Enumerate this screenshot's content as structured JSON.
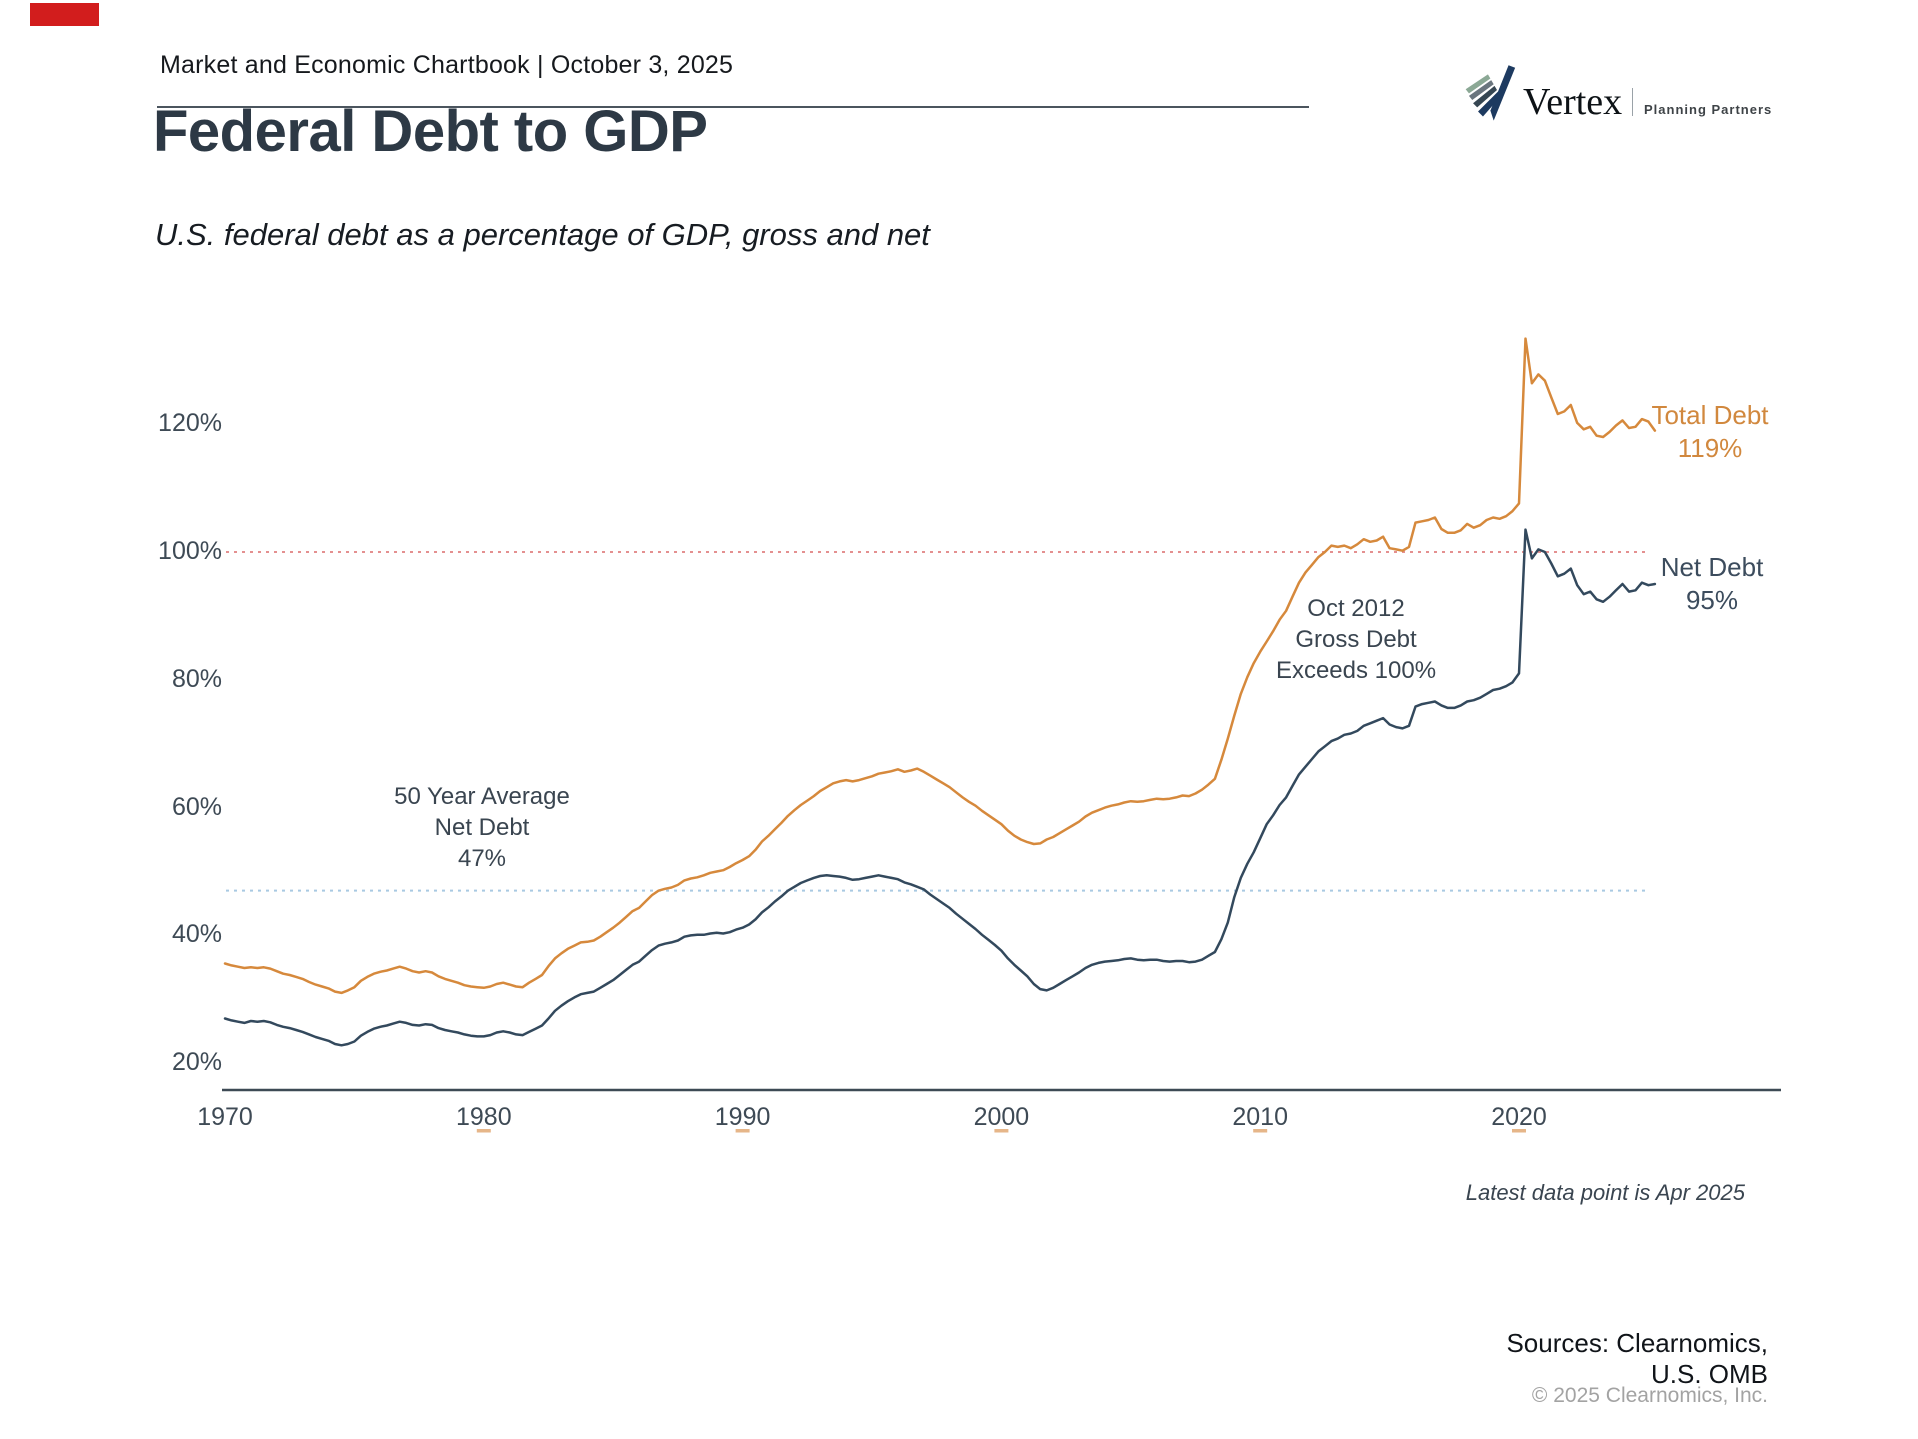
{
  "header": {
    "text": "Market and Economic Chartbook | October 3, 2025"
  },
  "logo": {
    "name": "Vertex",
    "tagline": "Planning Partners"
  },
  "title": "Federal Debt to GDP",
  "subtitle": "U.S. federal debt as a percentage of GDP, gross and net",
  "annotations": {
    "avg": {
      "l1": "50 Year Average",
      "l2": "Net Debt",
      "l3": "47%"
    },
    "oct2012": {
      "l1": "Oct 2012",
      "l2": "Gross Debt",
      "l3": "Exceeds 100%"
    },
    "latest": "Latest data point is Apr 2025"
  },
  "footer": {
    "sources": [
      "Sources: Clearnomics,",
      "U.S. OMB"
    ],
    "copyright": "© 2025 Clearnomics, Inc."
  },
  "colors": {
    "total_line": "#d6893c",
    "net_line": "#33495d",
    "ref_100": "#e49090",
    "ref_avg": "#a9c9e2",
    "axis": "#3d4a55",
    "tick_accent": "#dd9d62",
    "title": "#2d3945",
    "red_mark": "#d21d1d"
  },
  "chart_data": {
    "type": "line",
    "title": "Federal Debt to GDP",
    "subtitle": "U.S. federal debt as a percentage of GDP, gross and net",
    "unit": "percent of GDP",
    "x_range": [
      1970,
      2025.25
    ],
    "ylim": [
      14,
      140
    ],
    "grid": false,
    "legend_position": "end-of-line labels",
    "y_ticks": [
      {
        "value": 120,
        "label": "120%"
      },
      {
        "value": 100,
        "label": "100%"
      },
      {
        "value": 80,
        "label": "80%"
      },
      {
        "value": 60,
        "label": "60%"
      },
      {
        "value": 40,
        "label": "40%"
      },
      {
        "value": 20,
        "label": "20%"
      }
    ],
    "x_ticks": [
      {
        "value": 1970,
        "label": "1970"
      },
      {
        "value": 1980,
        "label": "1980"
      },
      {
        "value": 1990,
        "label": "1990"
      },
      {
        "value": 2000,
        "label": "2000"
      },
      {
        "value": 2010,
        "label": "2010"
      },
      {
        "value": 2020,
        "label": "2020"
      }
    ],
    "reference_lines": [
      {
        "value": 100,
        "style": "dotted",
        "color": "#e49090",
        "label": "100% level"
      },
      {
        "value": 47,
        "style": "dotted",
        "color": "#a9c9e2",
        "label": "50 Year Average Net Debt 47%"
      }
    ],
    "series": [
      {
        "name": "Total Debt",
        "latest_label": "119%",
        "color": "#d6893c",
        "x_start": 1970,
        "x_step": 0.25,
        "values": [
          35.6,
          35.3,
          35.1,
          34.9,
          35.0,
          34.9,
          35.0,
          34.8,
          34.4,
          34.0,
          33.8,
          33.5,
          33.2,
          32.7,
          32.3,
          32.0,
          31.7,
          31.2,
          31.0,
          31.4,
          31.9,
          32.9,
          33.5,
          34.0,
          34.3,
          34.5,
          34.8,
          35.1,
          34.8,
          34.4,
          34.2,
          34.4,
          34.2,
          33.6,
          33.2,
          32.9,
          32.6,
          32.2,
          32.0,
          31.9,
          31.8,
          32.0,
          32.4,
          32.6,
          32.3,
          32.0,
          31.9,
          32.6,
          33.2,
          33.8,
          35.2,
          36.4,
          37.2,
          37.9,
          38.4,
          38.9,
          39.0,
          39.2,
          39.8,
          40.5,
          41.2,
          42.0,
          42.9,
          43.8,
          44.3,
          45.3,
          46.3,
          47.0,
          47.3,
          47.5,
          47.9,
          48.6,
          48.9,
          49.1,
          49.4,
          49.8,
          50.0,
          50.2,
          50.7,
          51.3,
          51.8,
          52.4,
          53.4,
          54.7,
          55.6,
          56.6,
          57.6,
          58.7,
          59.6,
          60.4,
          61.1,
          61.8,
          62.6,
          63.2,
          63.8,
          64.1,
          64.3,
          64.1,
          64.3,
          64.6,
          64.9,
          65.3,
          65.5,
          65.7,
          66.0,
          65.6,
          65.8,
          66.1,
          65.6,
          65.0,
          64.4,
          63.8,
          63.2,
          62.4,
          61.6,
          60.9,
          60.3,
          59.5,
          58.8,
          58.1,
          57.4,
          56.4,
          55.6,
          55.0,
          54.6,
          54.3,
          54.4,
          55.0,
          55.4,
          56.0,
          56.6,
          57.2,
          57.8,
          58.6,
          59.2,
          59.6,
          60.0,
          60.3,
          60.5,
          60.8,
          61.0,
          60.9,
          61.0,
          61.2,
          61.4,
          61.3,
          61.4,
          61.6,
          61.9,
          61.8,
          62.2,
          62.8,
          63.6,
          64.5,
          67.5,
          70.8,
          74.4,
          77.8,
          80.4,
          82.6,
          84.4,
          86.0,
          87.6,
          89.4,
          90.8,
          93.0,
          95.2,
          96.8,
          98.0,
          99.2,
          100.0,
          101.0,
          100.8,
          101.0,
          100.6,
          101.2,
          102.0,
          101.6,
          101.8,
          102.4,
          100.6,
          100.4,
          100.2,
          100.8,
          104.6,
          104.8,
          105.0,
          105.4,
          103.6,
          103.0,
          103.0,
          103.4,
          104.4,
          103.8,
          104.2,
          105.0,
          105.4,
          105.2,
          105.6,
          106.4,
          107.6,
          133.4,
          126.4,
          127.8,
          126.8,
          124.2,
          121.6,
          122.0,
          123.0,
          120.2,
          119.2,
          119.6,
          118.2,
          118.0,
          118.8,
          119.8,
          120.6,
          119.4,
          119.6,
          120.8,
          120.4,
          119.0
        ]
      },
      {
        "name": "Net Debt",
        "latest_label": "95%",
        "color": "#33495d",
        "x_start": 1970,
        "x_step": 0.25,
        "values": [
          27.0,
          26.7,
          26.5,
          26.3,
          26.6,
          26.5,
          26.6,
          26.4,
          26.0,
          25.7,
          25.5,
          25.2,
          24.9,
          24.5,
          24.1,
          23.8,
          23.5,
          23.0,
          22.8,
          23.0,
          23.4,
          24.3,
          24.9,
          25.4,
          25.7,
          25.9,
          26.2,
          26.5,
          26.3,
          26.0,
          25.9,
          26.1,
          26.0,
          25.5,
          25.2,
          25.0,
          24.8,
          24.5,
          24.3,
          24.2,
          24.2,
          24.4,
          24.8,
          25.0,
          24.8,
          24.5,
          24.4,
          24.9,
          25.4,
          25.9,
          27.0,
          28.2,
          29.0,
          29.7,
          30.3,
          30.8,
          31.0,
          31.2,
          31.8,
          32.4,
          33.0,
          33.8,
          34.6,
          35.4,
          35.9,
          36.8,
          37.7,
          38.4,
          38.7,
          38.9,
          39.2,
          39.8,
          40.0,
          40.1,
          40.1,
          40.3,
          40.4,
          40.3,
          40.5,
          40.9,
          41.2,
          41.7,
          42.5,
          43.6,
          44.4,
          45.3,
          46.1,
          47.0,
          47.6,
          48.2,
          48.6,
          49.0,
          49.3,
          49.4,
          49.3,
          49.2,
          49.0,
          48.7,
          48.8,
          49.0,
          49.2,
          49.4,
          49.2,
          49.0,
          48.8,
          48.3,
          48.0,
          47.6,
          47.2,
          46.4,
          45.7,
          45.0,
          44.3,
          43.4,
          42.6,
          41.8,
          41.0,
          40.1,
          39.3,
          38.5,
          37.6,
          36.4,
          35.4,
          34.5,
          33.6,
          32.4,
          31.6,
          31.4,
          31.8,
          32.4,
          33.0,
          33.6,
          34.2,
          34.9,
          35.4,
          35.7,
          35.9,
          36.0,
          36.1,
          36.3,
          36.4,
          36.2,
          36.1,
          36.2,
          36.2,
          36.0,
          35.9,
          36.0,
          36.0,
          35.8,
          35.9,
          36.2,
          36.8,
          37.4,
          39.4,
          42.0,
          46.0,
          49.0,
          51.2,
          53.0,
          55.2,
          57.4,
          58.8,
          60.4,
          61.6,
          63.4,
          65.2,
          66.4,
          67.6,
          68.8,
          69.6,
          70.4,
          70.8,
          71.4,
          71.6,
          72.0,
          72.8,
          73.2,
          73.6,
          74.0,
          73.0,
          72.6,
          72.4,
          72.8,
          75.8,
          76.2,
          76.4,
          76.6,
          76.0,
          75.6,
          75.6,
          76.0,
          76.6,
          76.8,
          77.2,
          77.8,
          78.4,
          78.6,
          79.0,
          79.6,
          81.0,
          103.5,
          99.0,
          100.4,
          100.0,
          98.2,
          96.2,
          96.6,
          97.4,
          94.8,
          93.4,
          93.8,
          92.6,
          92.2,
          93.0,
          94.0,
          95.0,
          93.8,
          94.0,
          95.2,
          94.8,
          95.0
        ]
      }
    ]
  }
}
